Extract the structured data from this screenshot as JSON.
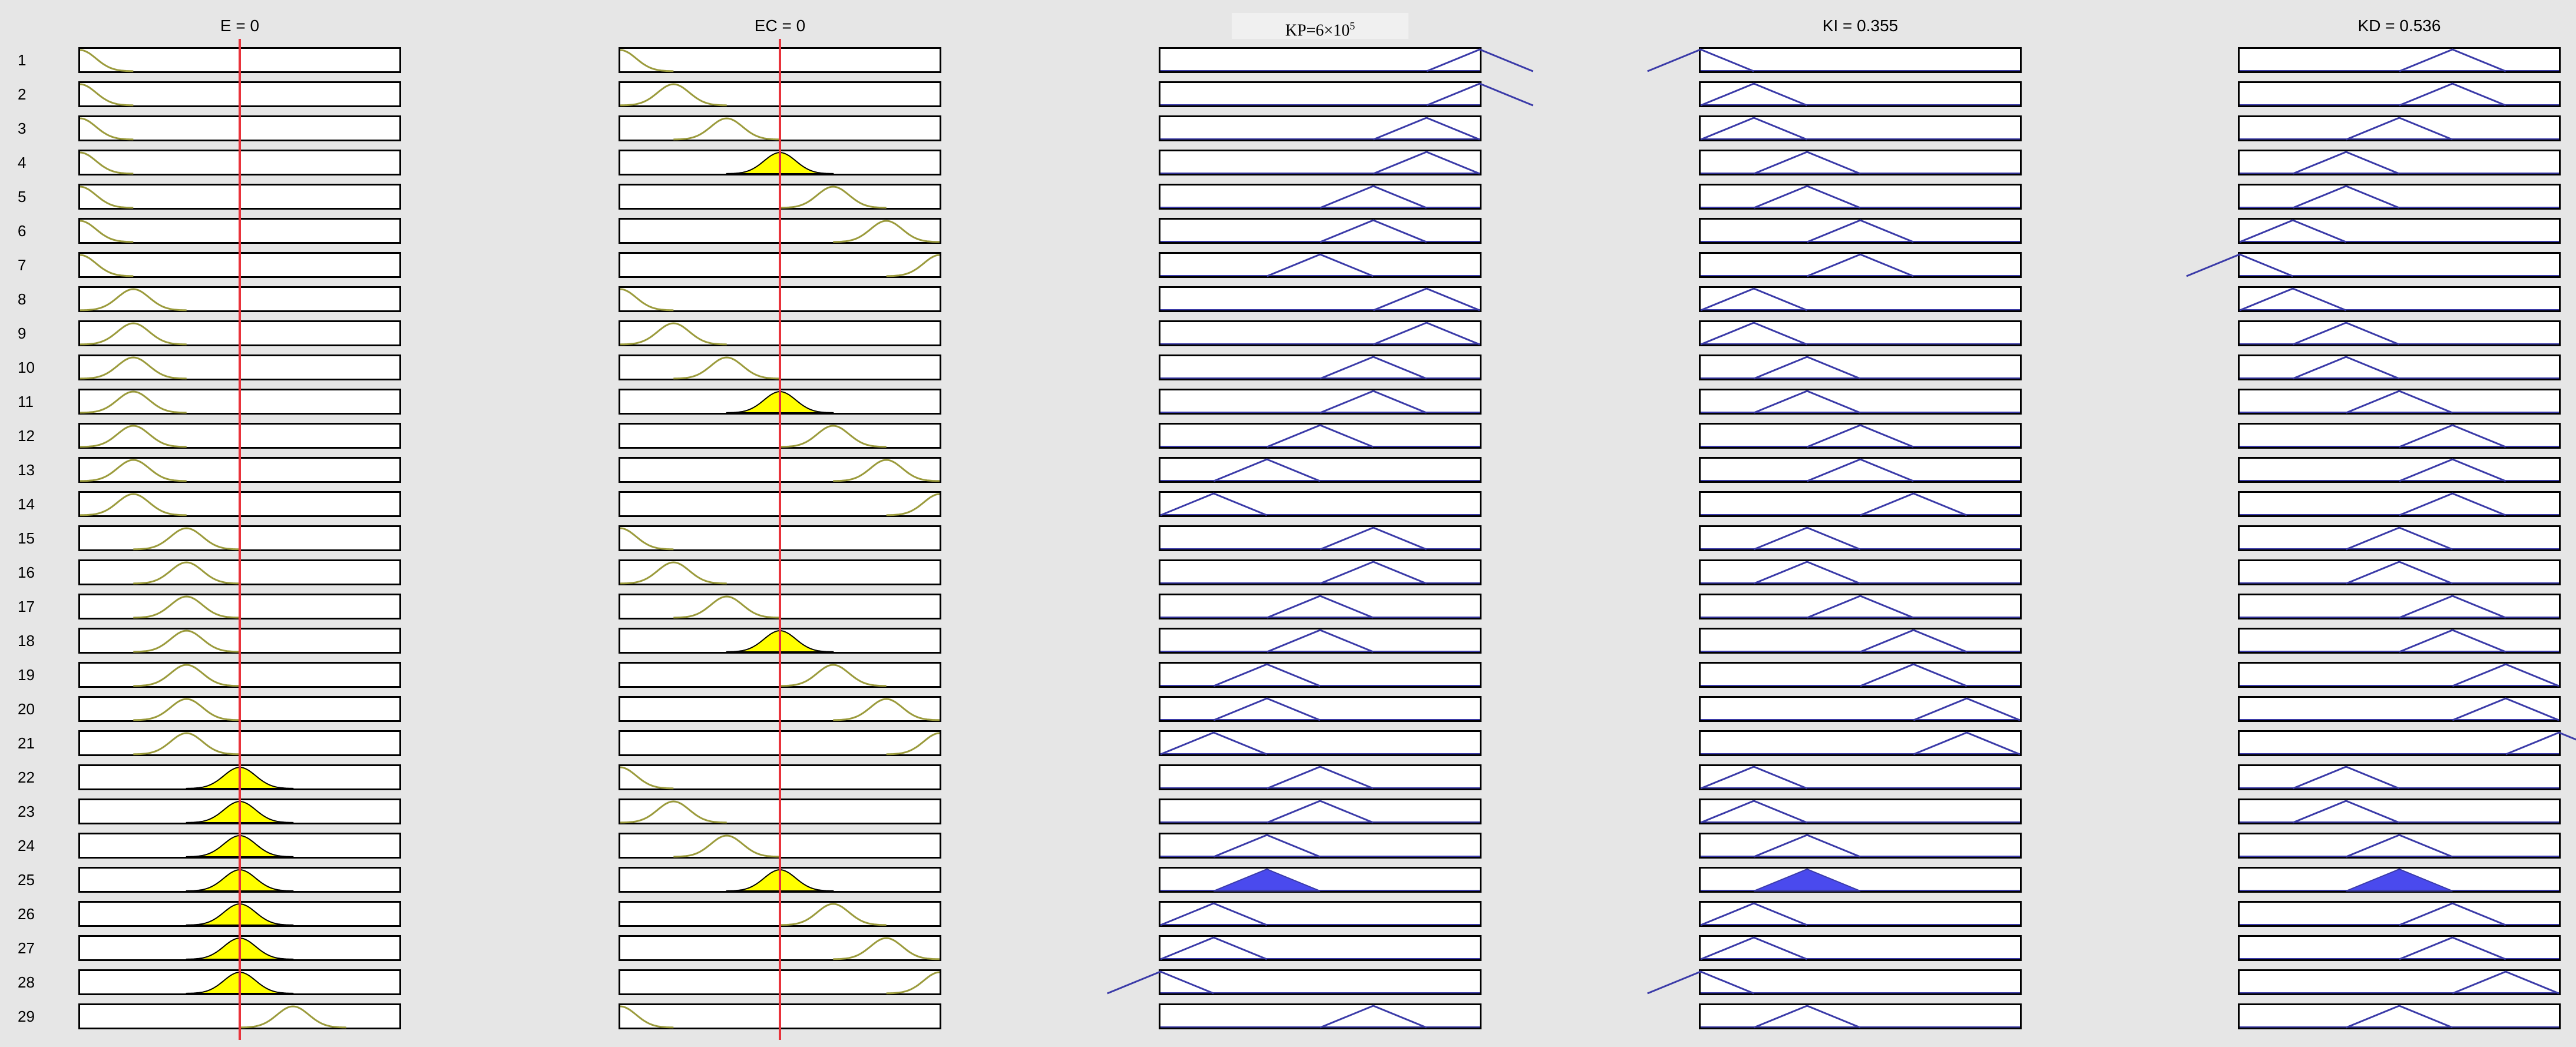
{
  "window": {
    "columns": [
      {
        "id": "e",
        "title": "E = 0",
        "kind": "input",
        "cursor": 0.5
      },
      {
        "id": "ec",
        "title": "EC = 0",
        "kind": "input",
        "cursor": 0.5
      },
      {
        "id": "kp",
        "title": "KP=6×10",
        "superscript": "5",
        "kind": "output"
      },
      {
        "id": "ki",
        "title": "KI = 0.355",
        "kind": "output"
      },
      {
        "id": "kd",
        "title": "KD = 0.536",
        "kind": "output"
      }
    ],
    "rows": [
      {
        "label": "1",
        "e": [
          0,
          0
        ],
        "ec": [
          0,
          0
        ],
        "kp": [
          6,
          0
        ],
        "ki": [
          0,
          0
        ],
        "kd": [
          4,
          0
        ]
      },
      {
        "label": "2",
        "e": [
          0,
          0
        ],
        "ec": [
          1,
          0
        ],
        "kp": [
          6,
          0
        ],
        "ki": [
          1,
          0
        ],
        "kd": [
          4,
          0
        ]
      },
      {
        "label": "3",
        "e": [
          0,
          0
        ],
        "ec": [
          2,
          0
        ],
        "kp": [
          5,
          0
        ],
        "ki": [
          1,
          0
        ],
        "kd": [
          3,
          0
        ]
      },
      {
        "label": "4",
        "e": [
          0,
          0
        ],
        "ec": [
          3,
          1
        ],
        "kp": [
          5,
          0
        ],
        "ki": [
          2,
          0
        ],
        "kd": [
          2,
          0
        ]
      },
      {
        "label": "5",
        "e": [
          0,
          0
        ],
        "ec": [
          4,
          0
        ],
        "kp": [
          4,
          0
        ],
        "ki": [
          2,
          0
        ],
        "kd": [
          2,
          0
        ]
      },
      {
        "label": "6",
        "e": [
          0,
          0
        ],
        "ec": [
          5,
          0
        ],
        "kp": [
          4,
          0
        ],
        "ki": [
          3,
          0
        ],
        "kd": [
          1,
          0
        ]
      },
      {
        "label": "7",
        "e": [
          0,
          0
        ],
        "ec": [
          6,
          0
        ],
        "kp": [
          3,
          0
        ],
        "ki": [
          3,
          0
        ],
        "kd": [
          0,
          0
        ]
      },
      {
        "label": "8",
        "e": [
          1,
          0
        ],
        "ec": [
          0,
          0
        ],
        "kp": [
          5,
          0
        ],
        "ki": [
          1,
          0
        ],
        "kd": [
          1,
          0
        ]
      },
      {
        "label": "9",
        "e": [
          1,
          0
        ],
        "ec": [
          1,
          0
        ],
        "kp": [
          5,
          0
        ],
        "ki": [
          1,
          0
        ],
        "kd": [
          2,
          0
        ]
      },
      {
        "label": "10",
        "e": [
          1,
          0
        ],
        "ec": [
          2,
          0
        ],
        "kp": [
          4,
          0
        ],
        "ki": [
          2,
          0
        ],
        "kd": [
          2,
          0
        ]
      },
      {
        "label": "11",
        "e": [
          1,
          0
        ],
        "ec": [
          3,
          1
        ],
        "kp": [
          4,
          0
        ],
        "ki": [
          2,
          0
        ],
        "kd": [
          3,
          0
        ]
      },
      {
        "label": "12",
        "e": [
          1,
          0
        ],
        "ec": [
          4,
          0
        ],
        "kp": [
          3,
          0
        ],
        "ki": [
          3,
          0
        ],
        "kd": [
          4,
          0
        ]
      },
      {
        "label": "13",
        "e": [
          1,
          0
        ],
        "ec": [
          5,
          0
        ],
        "kp": [
          2,
          0
        ],
        "ki": [
          3,
          0
        ],
        "kd": [
          4,
          0
        ]
      },
      {
        "label": "14",
        "e": [
          1,
          0
        ],
        "ec": [
          6,
          0
        ],
        "kp": [
          1,
          0
        ],
        "ki": [
          4,
          0
        ],
        "kd": [
          4,
          0
        ]
      },
      {
        "label": "15",
        "e": [
          2,
          0
        ],
        "ec": [
          0,
          0
        ],
        "kp": [
          4,
          0
        ],
        "ki": [
          2,
          0
        ],
        "kd": [
          3,
          0
        ]
      },
      {
        "label": "16",
        "e": [
          2,
          0
        ],
        "ec": [
          1,
          0
        ],
        "kp": [
          4,
          0
        ],
        "ki": [
          2,
          0
        ],
        "kd": [
          3,
          0
        ]
      },
      {
        "label": "17",
        "e": [
          2,
          0
        ],
        "ec": [
          2,
          0
        ],
        "kp": [
          3,
          0
        ],
        "ki": [
          3,
          0
        ],
        "kd": [
          4,
          0
        ]
      },
      {
        "label": "18",
        "e": [
          2,
          0
        ],
        "ec": [
          3,
          1
        ],
        "kp": [
          3,
          0
        ],
        "ki": [
          4,
          0
        ],
        "kd": [
          4,
          0
        ]
      },
      {
        "label": "19",
        "e": [
          2,
          0
        ],
        "ec": [
          4,
          0
        ],
        "kp": [
          2,
          0
        ],
        "ki": [
          4,
          0
        ],
        "kd": [
          5,
          0
        ]
      },
      {
        "label": "20",
        "e": [
          2,
          0
        ],
        "ec": [
          5,
          0
        ],
        "kp": [
          2,
          0
        ],
        "ki": [
          5,
          0
        ],
        "kd": [
          5,
          0
        ]
      },
      {
        "label": "21",
        "e": [
          2,
          0
        ],
        "ec": [
          6,
          0
        ],
        "kp": [
          1,
          0
        ],
        "ki": [
          5,
          0
        ],
        "kd": [
          6,
          0
        ]
      },
      {
        "label": "22",
        "e": [
          3,
          1
        ],
        "ec": [
          0,
          0
        ],
        "kp": [
          3,
          0
        ],
        "ki": [
          1,
          0
        ],
        "kd": [
          2,
          0
        ]
      },
      {
        "label": "23",
        "e": [
          3,
          1
        ],
        "ec": [
          1,
          0
        ],
        "kp": [
          3,
          0
        ],
        "ki": [
          1,
          0
        ],
        "kd": [
          2,
          0
        ]
      },
      {
        "label": "24",
        "e": [
          3,
          1
        ],
        "ec": [
          2,
          0
        ],
        "kp": [
          2,
          0
        ],
        "ki": [
          2,
          0
        ],
        "kd": [
          3,
          0
        ]
      },
      {
        "label": "25",
        "e": [
          3,
          1
        ],
        "ec": [
          3,
          1
        ],
        "kp": [
          2,
          1
        ],
        "ki": [
          2,
          1
        ],
        "kd": [
          3,
          1
        ]
      },
      {
        "label": "26",
        "e": [
          3,
          1
        ],
        "ec": [
          4,
          0
        ],
        "kp": [
          1,
          0
        ],
        "ki": [
          1,
          0
        ],
        "kd": [
          4,
          0
        ]
      },
      {
        "label": "27",
        "e": [
          3,
          1
        ],
        "ec": [
          5,
          0
        ],
        "kp": [
          1,
          0
        ],
        "ki": [
          1,
          0
        ],
        "kd": [
          4,
          0
        ]
      },
      {
        "label": "28",
        "e": [
          3,
          1
        ],
        "ec": [
          6,
          0
        ],
        "kp": [
          0,
          0
        ],
        "ki": [
          0,
          0
        ],
        "kd": [
          5,
          0
        ]
      },
      {
        "label": "29",
        "e": [
          4,
          0
        ],
        "ec": [
          0,
          0
        ],
        "kp": [
          4,
          0
        ],
        "ki": [
          2,
          0
        ],
        "kd": [
          3,
          0
        ]
      }
    ]
  },
  "colors": {
    "background": "#e6e6e6",
    "input_curve": "#9b9b3c",
    "input_fill": "#ffff00",
    "output_curve": "#3a3aa8",
    "output_fill": "#4a4aee",
    "cursor": "#e8323a"
  }
}
